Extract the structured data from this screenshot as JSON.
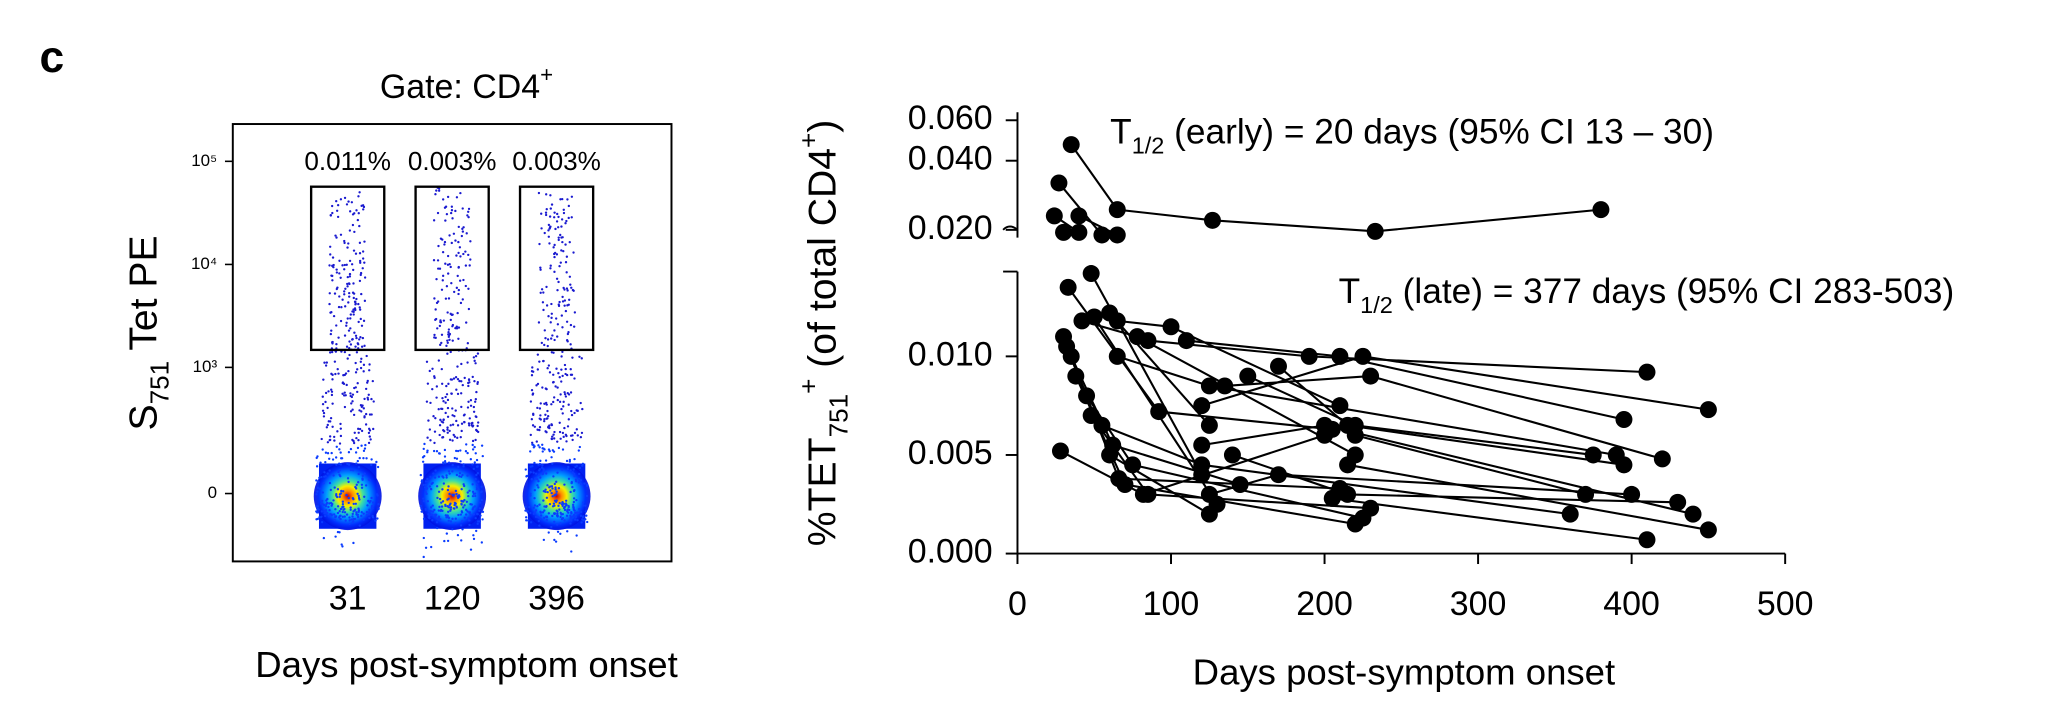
{
  "panel_label": "c",
  "chart_data": [
    {
      "type": "flow",
      "title": [
        "Gate: CD4",
        "+"
      ],
      "ylabel": [
        "S",
        "751",
        " Tet PE"
      ],
      "xlabel": "Days post-symptom onset",
      "categories": [
        "31",
        "120",
        "396"
      ],
      "values": [
        0.011,
        0.003,
        0.003
      ],
      "value_labels": [
        "0.011%",
        "0.003%",
        "0.003%"
      ],
      "yscale": "biexponential",
      "ylim": [
        -260,
        230000
      ],
      "yticks": [
        0,
        {
          "value": 1000,
          "label": "10³"
        },
        {
          "value": 10000,
          "label": "10⁴"
        },
        {
          "value": 100000,
          "label": "10⁵"
        }
      ]
    },
    {
      "type": "line",
      "ylabel": [
        "%TET",
        "751",
        "+",
        " (of total CD4",
        "+",
        ")"
      ],
      "xlabel": "Days post-symptom onset",
      "color": "#000000",
      "xlim": [
        0,
        500
      ],
      "xticks": [
        0,
        100,
        200,
        300,
        400,
        500
      ],
      "ylim": [
        0,
        0.0143
      ],
      "yticks": [
        {
          "value": 0,
          "label": "0.000"
        },
        {
          "value": 0.005,
          "label": "0.005"
        },
        {
          "value": 0.01,
          "label": "0.010"
        }
      ],
      "y2lim": [
        0.0185,
        0.065
      ],
      "y2scale": "log",
      "y2ticks": [
        {
          "value": 0.02,
          "label": "0.020"
        },
        {
          "value": 0.04,
          "label": "0.040"
        },
        {
          "value": 0.06,
          "label": "0.060"
        }
      ],
      "annotations": [
        {
          "symbol": "T",
          "subscript": "1/2",
          "text": " (early) = 20 days (95% CI 13 – 30)"
        },
        {
          "symbol": "T",
          "subscript": "1/2",
          "text": " (late) = 377 days (95% CI 283-503)"
        }
      ],
      "series": [
        {
          "x": [
            33,
            92,
            205
          ],
          "values": [
            0.0135,
            0.0072,
            0.0063
          ]
        },
        {
          "x": [
            48,
            120
          ],
          "values": [
            0.0142,
            0.004
          ]
        },
        {
          "x": [
            42,
            78,
            220
          ],
          "values": [
            0.0118,
            0.011,
            0.005
          ]
        },
        {
          "x": [
            50,
            130
          ],
          "values": [
            0.012,
            0.0025
          ]
        },
        {
          "x": [
            60,
            125
          ],
          "values": [
            0.0122,
            0.0065
          ]
        },
        {
          "x": [
            65,
            100,
            210
          ],
          "values": [
            0.0118,
            0.0115,
            0.0075
          ]
        },
        {
          "x": [
            30,
            60,
            125
          ],
          "values": [
            0.011,
            0.005,
            0.002
          ]
        },
        {
          "x": [
            32,
            66,
            210
          ],
          "values": [
            0.0105,
            0.0038,
            0.0033
          ]
        },
        {
          "x": [
            35,
            62,
            145
          ],
          "values": [
            0.01,
            0.0055,
            0.0035
          ]
        },
        {
          "x": [
            38,
            70,
            220
          ],
          "values": [
            0.009,
            0.0035,
            0.0015
          ]
        },
        {
          "x": [
            45,
            75,
            225
          ],
          "values": [
            0.008,
            0.0045,
            0.0018
          ]
        },
        {
          "x": [
            48,
            85,
            230
          ],
          "values": [
            0.007,
            0.003,
            0.0023
          ]
        },
        {
          "x": [
            55,
            120,
            360
          ],
          "values": [
            0.0065,
            0.0045,
            0.002
          ]
        },
        {
          "x": [
            28,
            82,
            200
          ],
          "values": [
            0.0052,
            0.003,
            0.006
          ]
        },
        {
          "x": [
            65,
            125,
            390
          ],
          "values": [
            0.01,
            0.0085,
            0.005
          ]
        },
        {
          "x": [
            85,
            190,
            410
          ],
          "values": [
            0.0108,
            0.01,
            0.0092
          ]
        },
        {
          "x": [
            110,
            210,
            395
          ],
          "values": [
            0.0108,
            0.01,
            0.0068
          ]
        },
        {
          "x": [
            120,
            225,
            450
          ],
          "values": [
            0.0075,
            0.01,
            0.0073
          ]
        },
        {
          "x": [
            135,
            230,
            420
          ],
          "values": [
            0.0085,
            0.009,
            0.0048
          ]
        },
        {
          "x": [
            150,
            220,
            375
          ],
          "values": [
            0.009,
            0.0065,
            0.005
          ]
        },
        {
          "x": [
            170,
            215,
            395
          ],
          "values": [
            0.0095,
            0.0065,
            0.0045
          ]
        },
        {
          "x": [
            120,
            200,
            440
          ],
          "values": [
            0.0055,
            0.0065,
            0.002
          ]
        },
        {
          "x": [
            125,
            170,
            400
          ],
          "values": [
            0.003,
            0.004,
            0.003
          ]
        },
        {
          "x": [
            140,
            215,
            430
          ],
          "values": [
            0.005,
            0.003,
            0.0026
          ]
        },
        {
          "x": [
            205,
            410
          ],
          "values": [
            0.0028,
            0.0007
          ]
        },
        {
          "x": [
            215,
            450
          ],
          "values": [
            0.0045,
            0.0012
          ]
        },
        {
          "x": [
            220,
            370
          ],
          "values": [
            0.006,
            0.003
          ]
        },
        {
          "x": [
            35,
            65,
            127,
            233,
            380
          ],
          "values": [
            0.047,
            0.0245,
            0.022,
            0.0197,
            0.0245
          ],
          "axis": "y2"
        },
        {
          "x": [
            27,
            55
          ],
          "values": [
            0.032,
            0.019
          ],
          "axis": "y2"
        },
        {
          "x": [
            24,
            40
          ],
          "values": [
            0.023,
            0.0195
          ],
          "axis": "y2"
        },
        {
          "x": [
            40,
            65
          ],
          "values": [
            0.023,
            0.019
          ],
          "axis": "y2"
        },
        {
          "x": [
            30
          ],
          "values": [
            0.0195
          ],
          "axis": "y2"
        }
      ]
    }
  ]
}
